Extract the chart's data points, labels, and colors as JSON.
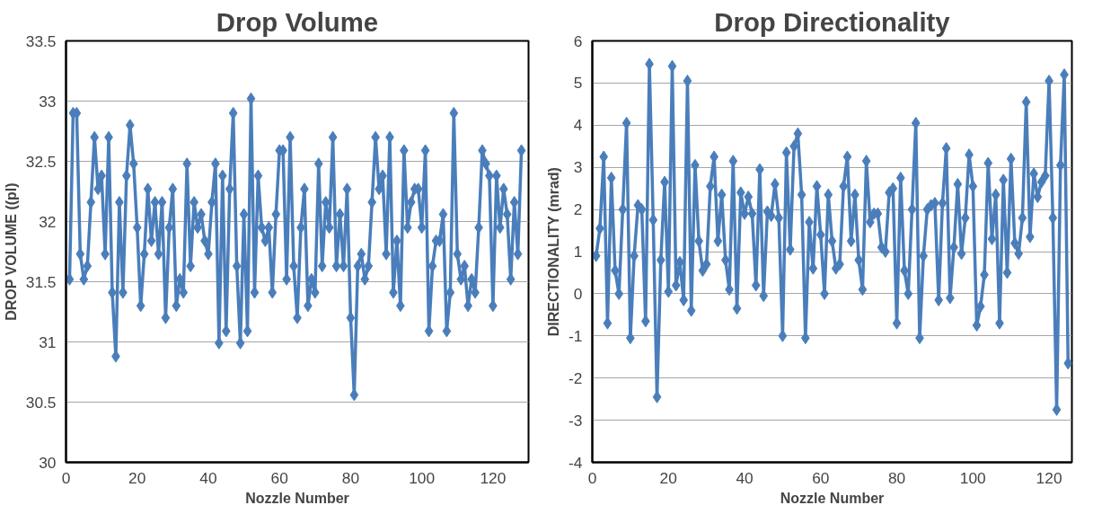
{
  "chart_data": [
    {
      "type": "line",
      "title": "Drop Volume",
      "xlabel": "Nozzle Number",
      "ylabel": "DROP VOLUME ((pl)",
      "marker": "diamond",
      "line_style": "solid",
      "grid": "y",
      "xlim": [
        0,
        130
      ],
      "xticks": [
        0,
        20,
        40,
        60,
        80,
        100,
        120
      ],
      "ylim": [
        30,
        33.5
      ],
      "yticks": [
        30,
        {
          "value": 30.5,
          "label": "30.5"
        },
        31,
        {
          "value": 31.5,
          "label": "31.5"
        },
        32,
        {
          "value": 32.5,
          "label": "32.5"
        },
        33,
        {
          "value": 33.5,
          "label": "33.5"
        }
      ],
      "series": [
        {
          "color": "#4a7ebb",
          "x": [
            1,
            2,
            3,
            4,
            5,
            6,
            7,
            8,
            9,
            10,
            11,
            12,
            13,
            14,
            15,
            16,
            17,
            18,
            19,
            20,
            21,
            22,
            23,
            24,
            25,
            26,
            27,
            28,
            29,
            30,
            31,
            32,
            33,
            34,
            35,
            36,
            37,
            38,
            39,
            40,
            41,
            42,
            43,
            44,
            45,
            46,
            47,
            48,
            49,
            50,
            51,
            52,
            53,
            54,
            55,
            56,
            57,
            58,
            59,
            60,
            61,
            62,
            63,
            64,
            65,
            66,
            67,
            68,
            69,
            70,
            71,
            72,
            73,
            74,
            75,
            76,
            77,
            78,
            79,
            80,
            81,
            82,
            83,
            84,
            85,
            86,
            87,
            88,
            89,
            90,
            91,
            92,
            93,
            94,
            95,
            96,
            97,
            98,
            99,
            100,
            101,
            102,
            103,
            104,
            105,
            106,
            107,
            108,
            109,
            110,
            111,
            112,
            113,
            114,
            115,
            116,
            117,
            118,
            119,
            120,
            121,
            122,
            123,
            124,
            125,
            126,
            127,
            128
          ],
          "values": [
            31.52,
            32.9,
            32.9,
            31.73,
            31.52,
            31.63,
            32.16,
            32.7,
            32.27,
            32.38,
            31.73,
            32.7,
            31.41,
            30.88,
            32.16,
            31.41,
            32.38,
            32.8,
            32.48,
            31.95,
            31.3,
            31.73,
            32.27,
            31.84,
            32.16,
            31.73,
            32.16,
            31.2,
            31.95,
            32.27,
            31.3,
            31.52,
            31.41,
            32.48,
            31.63,
            32.16,
            31.95,
            32.06,
            31.84,
            31.73,
            32.16,
            32.48,
            30.99,
            32.38,
            31.09,
            32.27,
            32.9,
            31.63,
            30.99,
            32.06,
            31.09,
            33.02,
            31.41,
            32.38,
            31.95,
            31.84,
            31.95,
            31.41,
            32.06,
            32.59,
            32.59,
            31.52,
            32.7,
            31.63,
            31.2,
            31.95,
            32.27,
            31.3,
            31.52,
            31.41,
            32.48,
            31.63,
            32.16,
            31.95,
            32.7,
            31.63,
            32.06,
            31.63,
            32.27,
            31.2,
            30.56,
            31.63,
            31.73,
            31.52,
            31.63,
            32.16,
            32.7,
            32.27,
            32.38,
            31.73,
            32.7,
            31.41,
            31.84,
            31.3,
            32.59,
            31.95,
            32.16,
            32.27,
            32.27,
            31.95,
            32.59,
            31.09,
            31.63,
            31.84,
            31.84,
            32.06,
            31.09,
            31.41,
            32.9,
            31.73,
            31.52,
            31.63,
            31.3,
            31.52,
            31.41,
            31.95,
            32.59,
            32.48,
            32.38,
            31.3,
            32.38,
            31.95,
            32.27,
            32.06,
            31.52,
            32.16,
            31.73,
            32.59
          ]
        }
      ]
    },
    {
      "type": "line",
      "title": "Drop Directionality",
      "xlabel": "Nozzle Number",
      "ylabel": "DIRECTIONALITY (mrad)",
      "marker": "diamond",
      "line_style": "solid",
      "grid": "y",
      "xlim": [
        0,
        126
      ],
      "xticks": [
        0,
        20,
        40,
        60,
        80,
        100,
        120
      ],
      "ylim": [
        -4,
        6
      ],
      "yticks": [
        -4,
        -3,
        -2,
        -1,
        0,
        1,
        2,
        3,
        4,
        5,
        6
      ],
      "series": [
        {
          "color": "#4a7ebb",
          "x": [
            1,
            2,
            3,
            4,
            5,
            6,
            7,
            8,
            9,
            10,
            11,
            12,
            13,
            14,
            15,
            16,
            17,
            18,
            19,
            20,
            21,
            22,
            23,
            24,
            25,
            26,
            27,
            28,
            29,
            30,
            31,
            32,
            33,
            34,
            35,
            36,
            37,
            38,
            39,
            40,
            41,
            42,
            43,
            44,
            45,
            46,
            47,
            48,
            49,
            50,
            51,
            52,
            53,
            54,
            55,
            56,
            57,
            58,
            59,
            60,
            61,
            62,
            63,
            64,
            65,
            66,
            67,
            68,
            69,
            70,
            71,
            72,
            73,
            74,
            75,
            76,
            77,
            78,
            79,
            80,
            81,
            82,
            83,
            84,
            85,
            86,
            87,
            88,
            89,
            90,
            91,
            92,
            93,
            94,
            95,
            96,
            97,
            98,
            99,
            100,
            101,
            102,
            103,
            104,
            105,
            106,
            107,
            108,
            109,
            110,
            111,
            112,
            113,
            114,
            115,
            116,
            117,
            118,
            119,
            120,
            121,
            122,
            123,
            124,
            125
          ],
          "values": [
            0.9,
            1.55,
            3.25,
            -0.7,
            2.75,
            0.55,
            0.0,
            2.0,
            4.05,
            -1.05,
            0.9,
            2.1,
            2.0,
            -0.65,
            5.45,
            1.75,
            -2.45,
            0.8,
            2.65,
            0.05,
            5.4,
            0.2,
            0.75,
            -0.15,
            5.05,
            -0.4,
            3.05,
            1.25,
            0.55,
            0.7,
            2.55,
            3.25,
            1.25,
            2.35,
            0.8,
            0.1,
            3.15,
            -0.35,
            2.4,
            1.9,
            2.3,
            1.9,
            0.2,
            2.95,
            -0.05,
            1.95,
            1.85,
            2.6,
            1.8,
            -1.0,
            3.35,
            1.05,
            3.5,
            3.8,
            2.35,
            -1.05,
            1.7,
            0.6,
            2.55,
            1.4,
            0.0,
            2.35,
            1.25,
            0.6,
            0.7,
            2.55,
            3.25,
            1.25,
            2.35,
            0.8,
            0.1,
            3.15,
            1.7,
            1.9,
            1.9,
            1.1,
            1.0,
            2.4,
            2.5,
            -0.7,
            2.75,
            0.55,
            0.0,
            2.0,
            4.05,
            -1.05,
            0.9,
            2.0,
            2.1,
            2.15,
            -0.15,
            2.15,
            3.45,
            -0.1,
            1.1,
            2.6,
            0.95,
            1.8,
            3.3,
            2.55,
            -0.75,
            -0.3,
            0.45,
            3.1,
            1.3,
            2.35,
            -0.7,
            2.7,
            0.5,
            3.2,
            1.2,
            0.95,
            1.8,
            4.55,
            1.35,
            2.85,
            2.3,
            2.65,
            2.8,
            5.05,
            1.8,
            -2.75,
            3.05,
            5.2,
            -1.65
          ]
        }
      ]
    }
  ]
}
